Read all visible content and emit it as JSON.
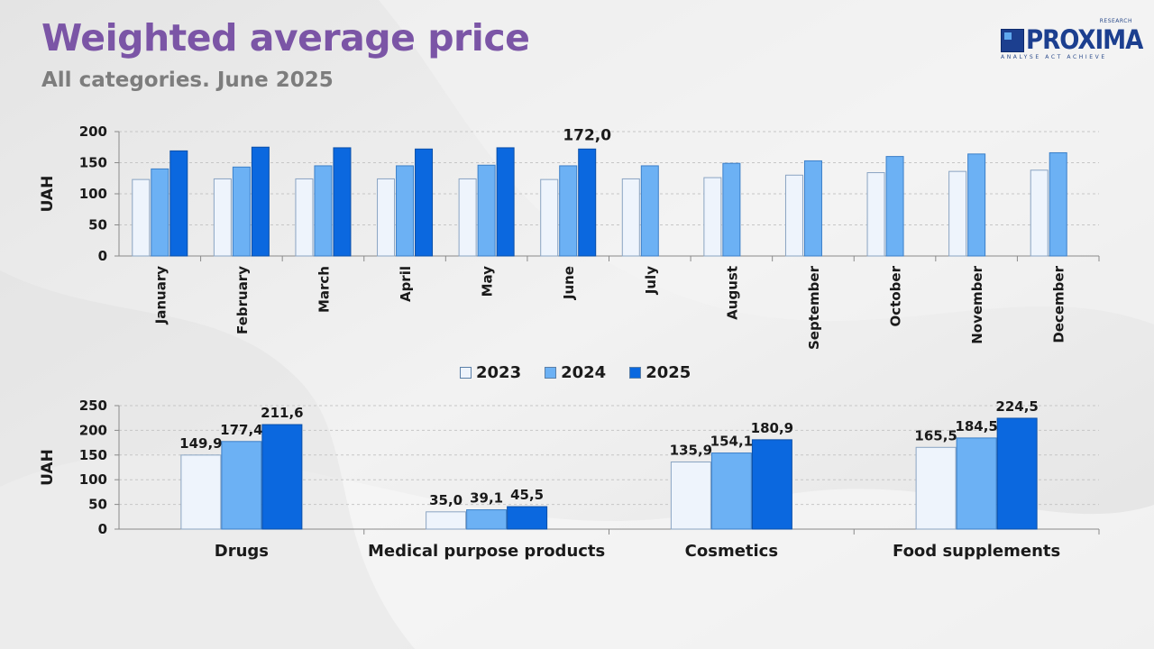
{
  "header": {
    "title": "Weighted average price",
    "subtitle": "All categories. June 2025"
  },
  "logo": {
    "name": "PROXIMA",
    "superscript": "RESEARCH",
    "tagline": "ANALYSE  ACT  ACHIEVE"
  },
  "colors": {
    "2023": "#eef4fc",
    "2024": "#6cb1f4",
    "2025": "#0b68df",
    "title": "#7b55a6",
    "subtitle": "#7d7d7d"
  },
  "legend": [
    "2023",
    "2024",
    "2025"
  ],
  "chart_data": [
    {
      "type": "bar",
      "ylabel": "UAH",
      "ylim": [
        0,
        200
      ],
      "yticks": [
        0,
        50,
        100,
        150,
        200
      ],
      "grid": true,
      "legend_position": "bottom",
      "categories": [
        "January",
        "February",
        "March",
        "April",
        "May",
        "June",
        "July",
        "August",
        "September",
        "October",
        "November",
        "December"
      ],
      "series": [
        {
          "name": "2023",
          "values": [
            123,
            124,
            124,
            124,
            124,
            123,
            124,
            126,
            130,
            134,
            136,
            138
          ]
        },
        {
          "name": "2024",
          "values": [
            140,
            143,
            145,
            145,
            146,
            145,
            145,
            149,
            153,
            160,
            164,
            166
          ]
        },
        {
          "name": "2025",
          "values": [
            169,
            175,
            174,
            172,
            174,
            172.0,
            null,
            null,
            null,
            null,
            null,
            null
          ]
        }
      ],
      "annotations": [
        {
          "category": "June",
          "series": "2025",
          "text": "172,0"
        }
      ]
    },
    {
      "type": "bar",
      "ylabel": "UAH",
      "ylim": [
        0,
        250
      ],
      "yticks": [
        0,
        50,
        100,
        150,
        200,
        250
      ],
      "grid": true,
      "categories": [
        "Drugs",
        "Medical purpose products",
        "Cosmetics",
        "Food supplements"
      ],
      "series": [
        {
          "name": "2023",
          "values": [
            149.9,
            35.0,
            135.9,
            165.5
          ],
          "labels": [
            "149,9",
            "35,0",
            "135,9",
            "165,5"
          ]
        },
        {
          "name": "2024",
          "values": [
            177.4,
            39.1,
            154.1,
            184.5
          ],
          "labels": [
            "177,4",
            "39,1",
            "154,1",
            "184,5"
          ]
        },
        {
          "name": "2025",
          "values": [
            211.6,
            45.5,
            180.9,
            224.5
          ],
          "labels": [
            "211,6",
            "45,5",
            "180,9",
            "224,5"
          ]
        }
      ]
    }
  ]
}
